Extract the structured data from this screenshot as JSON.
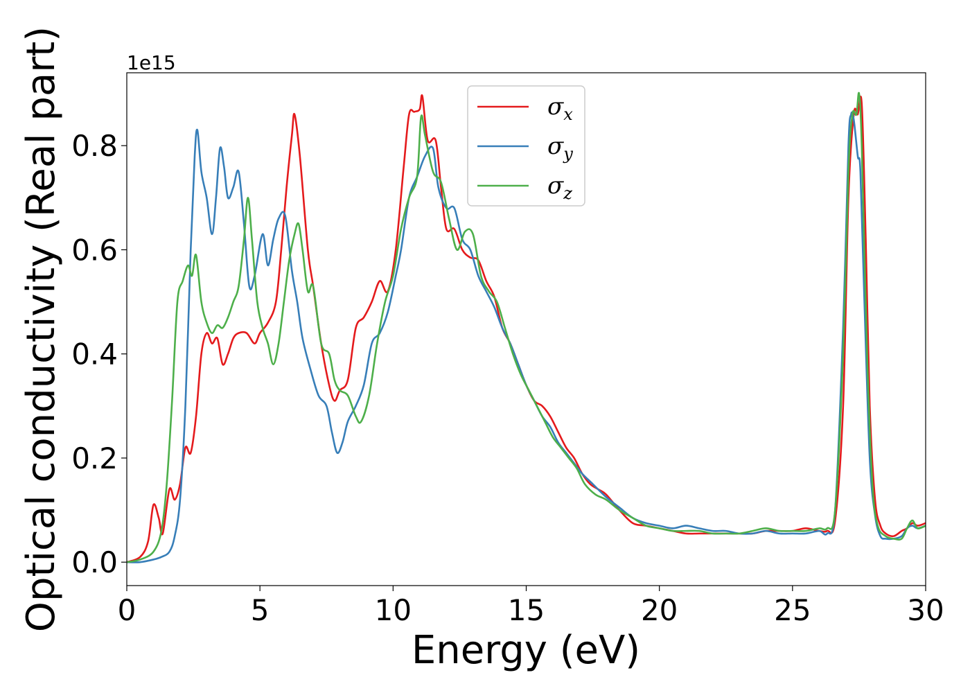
{
  "chart_data": {
    "type": "line",
    "xlabel": "Energy (eV)",
    "ylabel": "Optical conductivity (Real part)",
    "y_offset_text": "1e15",
    "xlim": [
      0,
      30
    ],
    "ylim": [
      -0.045,
      0.94
    ],
    "x_ticks": [
      0,
      5,
      10,
      15,
      20,
      25,
      30
    ],
    "x_tick_labels": [
      "0",
      "5",
      "10",
      "15",
      "20",
      "25",
      "30"
    ],
    "y_ticks": [
      0.0,
      0.2,
      0.4,
      0.6,
      0.8
    ],
    "y_tick_labels": [
      "0.0",
      "0.2",
      "0.4",
      "0.6",
      "0.8"
    ],
    "grid": false,
    "legend_position": "top-center",
    "series": [
      {
        "name": "σx",
        "symbol": "σ",
        "sub": "x",
        "color": "#e41a1c",
        "x": [
          0,
          0.5,
          0.8,
          1.0,
          1.2,
          1.35,
          1.6,
          1.8,
          2.0,
          2.2,
          2.4,
          2.6,
          2.8,
          3.0,
          3.2,
          3.4,
          3.6,
          3.8,
          4.0,
          4.2,
          4.5,
          4.8,
          5.0,
          5.3,
          5.6,
          5.8,
          6.0,
          6.2,
          6.3,
          6.5,
          6.8,
          7.0,
          7.3,
          7.6,
          7.8,
          8.0,
          8.3,
          8.6,
          8.9,
          9.2,
          9.5,
          9.8,
          10.1,
          10.4,
          10.6,
          10.8,
          11.0,
          11.1,
          11.3,
          11.6,
          11.8,
          12.0,
          12.3,
          12.6,
          12.9,
          13.2,
          13.5,
          13.8,
          14.1,
          14.4,
          14.7,
          15.0,
          15.3,
          15.6,
          15.9,
          16.2,
          16.5,
          16.8,
          17.1,
          17.4,
          17.7,
          18.0,
          18.5,
          19.0,
          19.5,
          20.0,
          20.5,
          21.0,
          21.5,
          22.0,
          22.5,
          23.0,
          23.5,
          24.0,
          24.5,
          25.0,
          25.5,
          26.0,
          26.3,
          26.6,
          26.9,
          27.1,
          27.3,
          27.45,
          27.6,
          27.75,
          27.9,
          28.1,
          28.3,
          28.5,
          28.8,
          29.1,
          29.3,
          29.5,
          29.7,
          30.0
        ],
        "y": [
          0.0,
          0.01,
          0.04,
          0.11,
          0.085,
          0.055,
          0.14,
          0.12,
          0.15,
          0.22,
          0.21,
          0.28,
          0.4,
          0.44,
          0.42,
          0.43,
          0.38,
          0.4,
          0.43,
          0.44,
          0.44,
          0.42,
          0.44,
          0.46,
          0.5,
          0.6,
          0.72,
          0.82,
          0.86,
          0.78,
          0.6,
          0.53,
          0.42,
          0.34,
          0.31,
          0.33,
          0.35,
          0.45,
          0.47,
          0.5,
          0.54,
          0.52,
          0.6,
          0.76,
          0.86,
          0.865,
          0.87,
          0.895,
          0.81,
          0.81,
          0.72,
          0.64,
          0.64,
          0.6,
          0.585,
          0.58,
          0.54,
          0.51,
          0.45,
          0.42,
          0.38,
          0.34,
          0.31,
          0.3,
          0.28,
          0.25,
          0.22,
          0.2,
          0.17,
          0.15,
          0.14,
          0.13,
          0.1,
          0.075,
          0.07,
          0.065,
          0.06,
          0.055,
          0.055,
          0.055,
          0.055,
          0.055,
          0.055,
          0.06,
          0.06,
          0.06,
          0.065,
          0.06,
          0.06,
          0.08,
          0.3,
          0.7,
          0.86,
          0.86,
          0.88,
          0.62,
          0.3,
          0.12,
          0.07,
          0.055,
          0.05,
          0.06,
          0.065,
          0.075,
          0.07,
          0.075
        ]
      },
      {
        "name": "σy",
        "symbol": "σ",
        "sub": "y",
        "color": "#377eb8",
        "x": [
          0,
          0.5,
          1.0,
          1.3,
          1.6,
          1.8,
          2.0,
          2.2,
          2.4,
          2.55,
          2.65,
          2.8,
          3.0,
          3.2,
          3.35,
          3.5,
          3.65,
          3.8,
          4.0,
          4.2,
          4.4,
          4.6,
          4.8,
          5.1,
          5.3,
          5.5,
          5.7,
          5.95,
          6.2,
          6.4,
          6.6,
          6.9,
          7.2,
          7.5,
          7.7,
          7.9,
          8.1,
          8.3,
          8.6,
          8.9,
          9.2,
          9.5,
          9.8,
          10.1,
          10.3,
          10.6,
          10.9,
          11.2,
          11.5,
          11.7,
          12.0,
          12.3,
          12.6,
          12.9,
          13.2,
          13.5,
          13.8,
          14.1,
          14.4,
          14.7,
          15.0,
          15.3,
          15.6,
          15.9,
          16.2,
          16.5,
          16.8,
          17.1,
          17.5,
          18.0,
          18.5,
          19.0,
          19.5,
          20.0,
          20.5,
          21.0,
          21.5,
          22.0,
          22.5,
          23.0,
          23.5,
          24.0,
          24.5,
          25.0,
          25.5,
          26.0,
          26.3,
          26.6,
          26.9,
          27.1,
          27.2,
          27.3,
          27.45,
          27.55,
          27.7,
          27.9,
          28.1,
          28.3,
          28.5,
          28.8,
          29.1,
          29.3,
          29.5,
          29.7,
          30.0
        ],
        "y": [
          0.0,
          0.0,
          0.005,
          0.01,
          0.02,
          0.05,
          0.12,
          0.3,
          0.6,
          0.78,
          0.83,
          0.75,
          0.7,
          0.63,
          0.7,
          0.795,
          0.76,
          0.7,
          0.72,
          0.75,
          0.65,
          0.53,
          0.55,
          0.63,
          0.57,
          0.62,
          0.66,
          0.665,
          0.56,
          0.5,
          0.43,
          0.37,
          0.32,
          0.3,
          0.25,
          0.21,
          0.23,
          0.27,
          0.3,
          0.34,
          0.42,
          0.44,
          0.48,
          0.55,
          0.6,
          0.7,
          0.74,
          0.78,
          0.795,
          0.72,
          0.68,
          0.68,
          0.62,
          0.6,
          0.55,
          0.52,
          0.49,
          0.45,
          0.42,
          0.38,
          0.34,
          0.31,
          0.28,
          0.26,
          0.23,
          0.21,
          0.19,
          0.17,
          0.15,
          0.125,
          0.105,
          0.085,
          0.075,
          0.07,
          0.065,
          0.07,
          0.065,
          0.06,
          0.06,
          0.055,
          0.055,
          0.06,
          0.055,
          0.055,
          0.055,
          0.06,
          0.055,
          0.1,
          0.45,
          0.8,
          0.86,
          0.85,
          0.78,
          0.75,
          0.5,
          0.2,
          0.09,
          0.05,
          0.045,
          0.045,
          0.05,
          0.065,
          0.07,
          0.065,
          0.07
        ]
      },
      {
        "name": "σz",
        "symbol": "σ",
        "sub": "z",
        "color": "#4daf4a",
        "x": [
          0,
          0.5,
          1.0,
          1.3,
          1.5,
          1.7,
          1.9,
          2.1,
          2.3,
          2.45,
          2.6,
          2.8,
          3.0,
          3.2,
          3.4,
          3.6,
          3.8,
          4.0,
          4.2,
          4.4,
          4.55,
          4.7,
          4.9,
          5.1,
          5.3,
          5.5,
          5.7,
          5.9,
          6.1,
          6.3,
          6.45,
          6.6,
          6.8,
          7.0,
          7.3,
          7.6,
          7.8,
          8.0,
          8.3,
          8.6,
          8.8,
          9.1,
          9.4,
          9.7,
          10.0,
          10.3,
          10.6,
          10.9,
          11.05,
          11.2,
          11.5,
          11.8,
          12.1,
          12.4,
          12.7,
          13.0,
          13.3,
          13.6,
          13.9,
          14.2,
          14.5,
          14.8,
          15.1,
          15.4,
          15.7,
          16.0,
          16.3,
          16.6,
          16.9,
          17.2,
          17.6,
          18.0,
          18.5,
          19.0,
          19.5,
          20.0,
          20.5,
          21.0,
          21.5,
          22.0,
          22.5,
          23.0,
          23.5,
          24.0,
          24.5,
          25.0,
          25.5,
          26.0,
          26.3,
          26.6,
          26.9,
          27.1,
          27.25,
          27.4,
          27.5,
          27.6,
          27.8,
          28.0,
          28.2,
          28.5,
          28.8,
          29.1,
          29.3,
          29.5,
          29.7,
          30.0
        ],
        "y": [
          0.0,
          0.005,
          0.02,
          0.06,
          0.15,
          0.31,
          0.5,
          0.54,
          0.57,
          0.55,
          0.59,
          0.5,
          0.46,
          0.44,
          0.455,
          0.45,
          0.47,
          0.5,
          0.53,
          0.62,
          0.7,
          0.62,
          0.5,
          0.45,
          0.42,
          0.38,
          0.42,
          0.5,
          0.58,
          0.63,
          0.65,
          0.6,
          0.52,
          0.53,
          0.42,
          0.4,
          0.35,
          0.33,
          0.32,
          0.28,
          0.27,
          0.32,
          0.42,
          0.5,
          0.55,
          0.64,
          0.7,
          0.74,
          0.855,
          0.82,
          0.75,
          0.73,
          0.66,
          0.6,
          0.635,
          0.63,
          0.55,
          0.52,
          0.5,
          0.45,
          0.4,
          0.36,
          0.33,
          0.3,
          0.27,
          0.24,
          0.22,
          0.2,
          0.18,
          0.15,
          0.13,
          0.12,
          0.1,
          0.085,
          0.07,
          0.065,
          0.06,
          0.06,
          0.06,
          0.055,
          0.055,
          0.055,
          0.06,
          0.065,
          0.06,
          0.06,
          0.06,
          0.065,
          0.065,
          0.1,
          0.4,
          0.75,
          0.86,
          0.86,
          0.9,
          0.8,
          0.4,
          0.15,
          0.07,
          0.05,
          0.045,
          0.045,
          0.065,
          0.08,
          0.065,
          0.07
        ]
      }
    ]
  }
}
